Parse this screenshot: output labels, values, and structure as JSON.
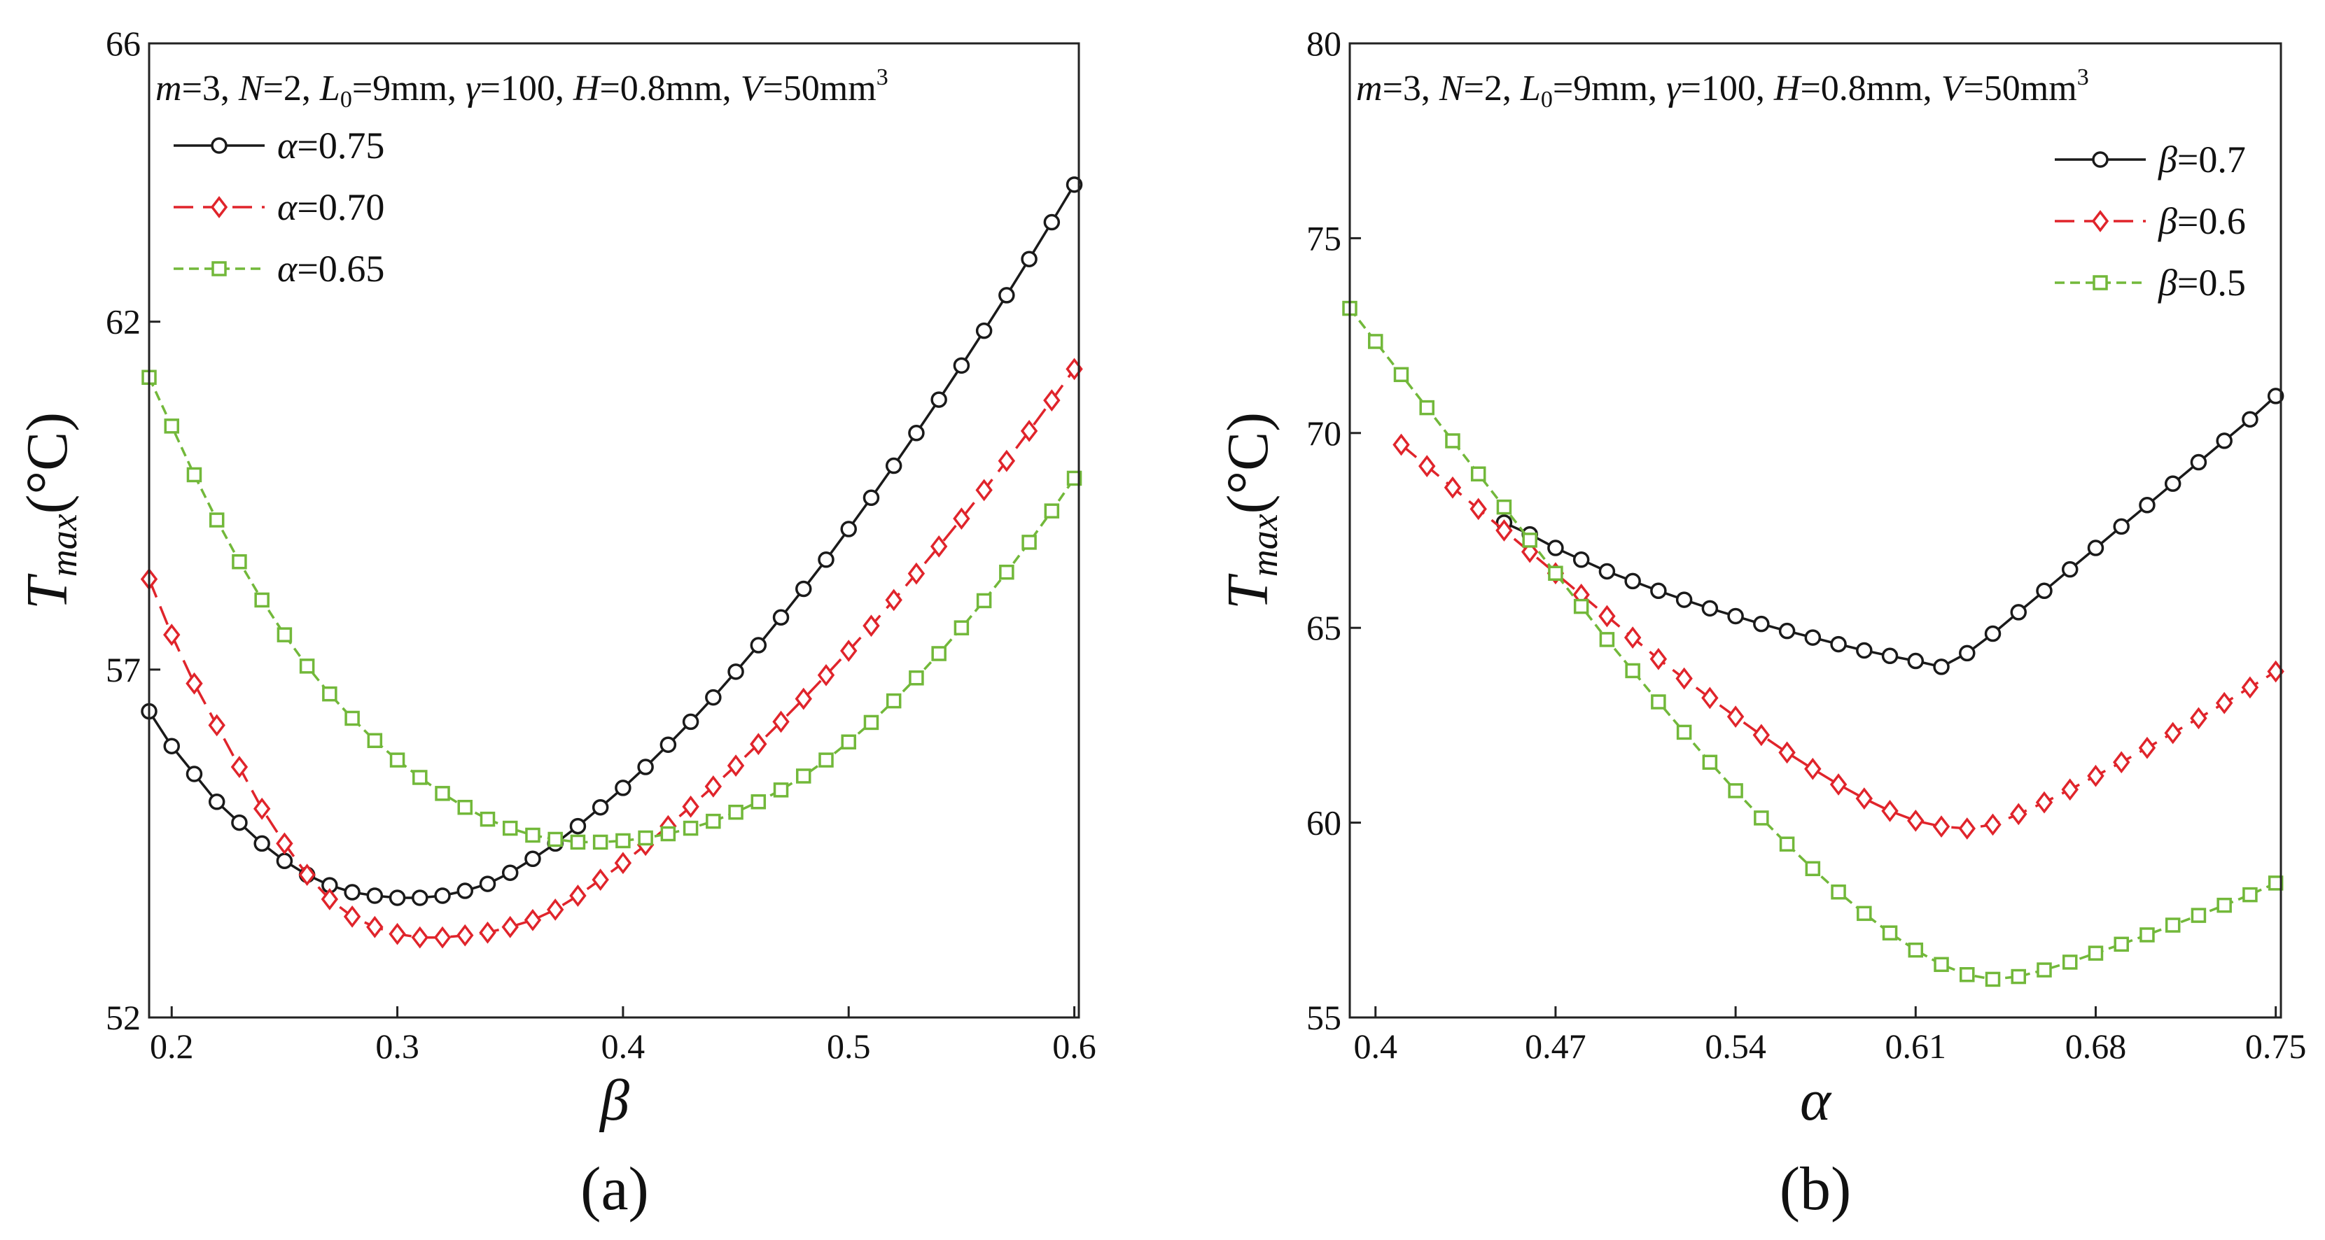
{
  "figure": {
    "panel_a_label": "(a)",
    "panel_b_label": "(b)",
    "condition_text": {
      "m": "m",
      "eq3": "=3, ",
      "N": "N",
      "eq2": "=2, ",
      "L": "L",
      "L_sub": "0",
      "eqL": "=9mm, ",
      "gamma": "γ",
      "eqg": "=100, ",
      "H": "H",
      "eqH": "=0.8mm, ",
      "V": "V",
      "eqV": "=50mm",
      "V_sup": "3"
    },
    "ylabel_main": "T",
    "ylabel_sub": "max",
    "ylabel_unit": "(°C)"
  },
  "colors": {
    "black": "#1a1a1a",
    "red": "#e0242b",
    "green": "#72b83a",
    "axis": "#222222"
  },
  "chart_data": [
    {
      "type": "line",
      "panel": "(a)",
      "xlabel": "β",
      "ylabel": "Tmax(°C)",
      "xlim": [
        0.19,
        0.602
      ],
      "ylim": [
        52,
        66
      ],
      "xticks": [
        0.2,
        0.3,
        0.4,
        0.5,
        0.6
      ],
      "xtick_labels": [
        "0.2",
        "0.3",
        "0.4",
        "0.5",
        "0.6"
      ],
      "yticks": [
        52,
        57,
        62,
        66
      ],
      "ytick_labels": [
        "52",
        "57",
        "62",
        "66"
      ],
      "legend_position": "top-left",
      "series": [
        {
          "name": "α=0.75",
          "sym": "α",
          "eq": "=0.75",
          "color": "#1a1a1a",
          "marker": "circle",
          "dash": "solid",
          "x": [
            0.19,
            0.2,
            0.21,
            0.22,
            0.23,
            0.24,
            0.25,
            0.26,
            0.27,
            0.28,
            0.29,
            0.3,
            0.31,
            0.32,
            0.33,
            0.34,
            0.35,
            0.36,
            0.37,
            0.38,
            0.39,
            0.4,
            0.41,
            0.42,
            0.43,
            0.44,
            0.45,
            0.46,
            0.47,
            0.48,
            0.49,
            0.5,
            0.51,
            0.52,
            0.53,
            0.54,
            0.55,
            0.56,
            0.57,
            0.58,
            0.59,
            0.6
          ],
          "y": [
            56.4,
            55.9,
            55.5,
            55.1,
            54.8,
            54.5,
            54.25,
            54.05,
            53.9,
            53.8,
            53.75,
            53.72,
            53.72,
            53.75,
            53.82,
            53.92,
            54.08,
            54.28,
            54.5,
            54.75,
            55.02,
            55.3,
            55.6,
            55.92,
            56.25,
            56.6,
            56.97,
            57.35,
            57.75,
            58.16,
            58.58,
            59.02,
            59.47,
            59.93,
            60.4,
            60.88,
            61.37,
            61.87,
            62.38,
            62.9,
            63.43,
            63.97
          ]
        },
        {
          "name": "α=0.70",
          "sym": "α",
          "eq": "=0.70",
          "color": "#e0242b",
          "marker": "diamond",
          "dash": "dashed",
          "x": [
            0.19,
            0.2,
            0.21,
            0.22,
            0.23,
            0.24,
            0.25,
            0.26,
            0.27,
            0.28,
            0.29,
            0.3,
            0.31,
            0.32,
            0.33,
            0.34,
            0.35,
            0.36,
            0.37,
            0.38,
            0.39,
            0.4,
            0.41,
            0.42,
            0.43,
            0.44,
            0.45,
            0.46,
            0.47,
            0.48,
            0.49,
            0.5,
            0.51,
            0.52,
            0.53,
            0.54,
            0.55,
            0.56,
            0.57,
            0.58,
            0.59,
            0.6
          ],
          "y": [
            58.3,
            57.5,
            56.8,
            56.2,
            55.6,
            55.0,
            54.5,
            54.05,
            53.7,
            53.45,
            53.3,
            53.2,
            53.15,
            53.15,
            53.18,
            53.22,
            53.3,
            53.4,
            53.55,
            53.75,
            53.98,
            54.22,
            54.48,
            54.75,
            55.03,
            55.32,
            55.62,
            55.93,
            56.25,
            56.58,
            56.92,
            57.27,
            57.63,
            58.0,
            58.38,
            58.77,
            59.17,
            59.58,
            60.0,
            60.43,
            60.87,
            61.32
          ]
        },
        {
          "name": "α=0.65",
          "sym": "α",
          "eq": "=0.65",
          "color": "#72b83a",
          "marker": "square",
          "dash": "dotted",
          "x": [
            0.19,
            0.2,
            0.21,
            0.22,
            0.23,
            0.24,
            0.25,
            0.26,
            0.27,
            0.28,
            0.29,
            0.3,
            0.31,
            0.32,
            0.33,
            0.34,
            0.35,
            0.36,
            0.37,
            0.38,
            0.39,
            0.4,
            0.41,
            0.42,
            0.43,
            0.44,
            0.45,
            0.46,
            0.47,
            0.48,
            0.49,
            0.5,
            0.51,
            0.52,
            0.53,
            0.54,
            0.55,
            0.56,
            0.57,
            0.58,
            0.59,
            0.6
          ],
          "y": [
            61.2,
            60.5,
            59.8,
            59.15,
            58.55,
            58.0,
            57.5,
            57.05,
            56.65,
            56.3,
            55.98,
            55.7,
            55.45,
            55.22,
            55.02,
            54.85,
            54.72,
            54.62,
            54.56,
            54.52,
            54.52,
            54.54,
            54.58,
            54.64,
            54.72,
            54.82,
            54.95,
            55.1,
            55.27,
            55.47,
            55.7,
            55.96,
            56.24,
            56.55,
            56.88,
            57.23,
            57.6,
            57.99,
            58.4,
            58.83,
            59.28,
            59.75
          ]
        }
      ]
    },
    {
      "type": "line",
      "panel": "(b)",
      "xlabel": "α",
      "ylabel": "Tmax(°C)",
      "xlim": [
        0.39,
        0.752
      ],
      "ylim": [
        55,
        80
      ],
      "xticks": [
        0.4,
        0.47,
        0.54,
        0.61,
        0.68,
        0.75
      ],
      "xtick_labels": [
        "0.4",
        "0.47",
        "0.54",
        "0.61",
        "0.68",
        "0.75"
      ],
      "yticks": [
        55,
        60,
        65,
        70,
        75,
        80
      ],
      "ytick_labels": [
        "55",
        "60",
        "65",
        "70",
        "75",
        "80"
      ],
      "legend_position": "top-right",
      "series": [
        {
          "name": "β=0.7",
          "sym": "β",
          "eq": "=0.7",
          "color": "#1a1a1a",
          "marker": "circle",
          "dash": "solid",
          "x": [
            0.45,
            0.46,
            0.47,
            0.48,
            0.49,
            0.5,
            0.51,
            0.52,
            0.53,
            0.54,
            0.55,
            0.56,
            0.57,
            0.58,
            0.59,
            0.6,
            0.61,
            0.62,
            0.63,
            0.64,
            0.65,
            0.66,
            0.67,
            0.68,
            0.69,
            0.7,
            0.71,
            0.72,
            0.73,
            0.74,
            0.75
          ],
          "y": [
            67.7,
            67.4,
            67.05,
            66.75,
            66.45,
            66.2,
            65.95,
            65.72,
            65.5,
            65.3,
            65.1,
            64.92,
            64.75,
            64.58,
            64.42,
            64.28,
            64.15,
            64.0,
            64.35,
            64.85,
            65.4,
            65.95,
            66.5,
            67.05,
            67.6,
            68.15,
            68.7,
            69.25,
            69.8,
            70.35,
            70.95
          ]
        },
        {
          "name": "β=0.6",
          "sym": "β",
          "eq": "=0.6",
          "color": "#e0242b",
          "marker": "diamond",
          "dash": "dashed",
          "x": [
            0.41,
            0.42,
            0.43,
            0.44,
            0.45,
            0.46,
            0.47,
            0.48,
            0.49,
            0.5,
            0.51,
            0.52,
            0.53,
            0.54,
            0.55,
            0.56,
            0.57,
            0.58,
            0.59,
            0.6,
            0.61,
            0.62,
            0.63,
            0.64,
            0.65,
            0.66,
            0.67,
            0.68,
            0.69,
            0.7,
            0.71,
            0.72,
            0.73,
            0.74,
            0.75
          ],
          "y": [
            69.7,
            69.15,
            68.6,
            68.05,
            67.5,
            66.95,
            66.4,
            65.85,
            65.3,
            64.75,
            64.2,
            63.7,
            63.2,
            62.72,
            62.25,
            61.8,
            61.38,
            60.98,
            60.62,
            60.3,
            60.05,
            59.9,
            59.85,
            59.95,
            60.22,
            60.52,
            60.85,
            61.2,
            61.55,
            61.92,
            62.3,
            62.68,
            63.07,
            63.47,
            63.88
          ]
        },
        {
          "name": "β=0.5",
          "sym": "β",
          "eq": "=0.5",
          "color": "#72b83a",
          "marker": "square",
          "dash": "dotted",
          "x": [
            0.39,
            0.4,
            0.41,
            0.42,
            0.43,
            0.44,
            0.45,
            0.46,
            0.47,
            0.48,
            0.49,
            0.5,
            0.51,
            0.52,
            0.53,
            0.54,
            0.55,
            0.56,
            0.57,
            0.58,
            0.59,
            0.6,
            0.61,
            0.62,
            0.63,
            0.64,
            0.65,
            0.66,
            0.67,
            0.68,
            0.69,
            0.7,
            0.71,
            0.72,
            0.73,
            0.74,
            0.75
          ],
          "y": [
            73.2,
            72.35,
            71.5,
            70.65,
            69.8,
            68.95,
            68.1,
            67.25,
            66.4,
            65.55,
            64.7,
            63.9,
            63.1,
            62.32,
            61.55,
            60.82,
            60.12,
            59.45,
            58.82,
            58.22,
            57.67,
            57.17,
            56.73,
            56.36,
            56.1,
            55.98,
            56.05,
            56.22,
            56.42,
            56.65,
            56.88,
            57.12,
            57.37,
            57.62,
            57.88,
            58.15,
            58.45
          ]
        }
      ]
    }
  ]
}
